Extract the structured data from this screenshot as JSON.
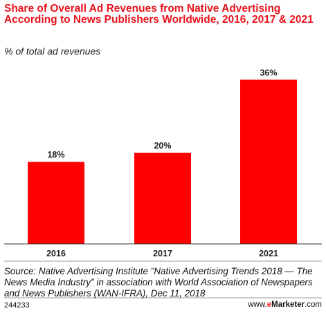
{
  "header": {
    "title": "Share of Overall Ad Revenues from Native Advertising According to News Publishers Worldwide, 2016, 2017 & 2021",
    "subtitle": "% of total ad revenues"
  },
  "chart_data": {
    "type": "bar",
    "categories": [
      "2016",
      "2017",
      "2021"
    ],
    "values": [
      18,
      20,
      36
    ],
    "value_labels": [
      "18%",
      "20%",
      "36%"
    ],
    "ylim": [
      0,
      40
    ],
    "grid": false,
    "bar_color": "#ff0000"
  },
  "footer": {
    "source": "Source: Native Advertising Institute \"Native Advertising Trends 2018 — The News Media Industry\" in association with World Association of Newspapers and News Publishers (WAN-IFRA), Dec 11, 2018",
    "id": "244233",
    "brand_prefix": "www.",
    "brand_e": "e",
    "brand_main": "Marketer",
    "brand_suffix": ".com"
  },
  "colors": {
    "accent": "#e8131b",
    "bar": "#ff0000",
    "text": "#222222"
  }
}
